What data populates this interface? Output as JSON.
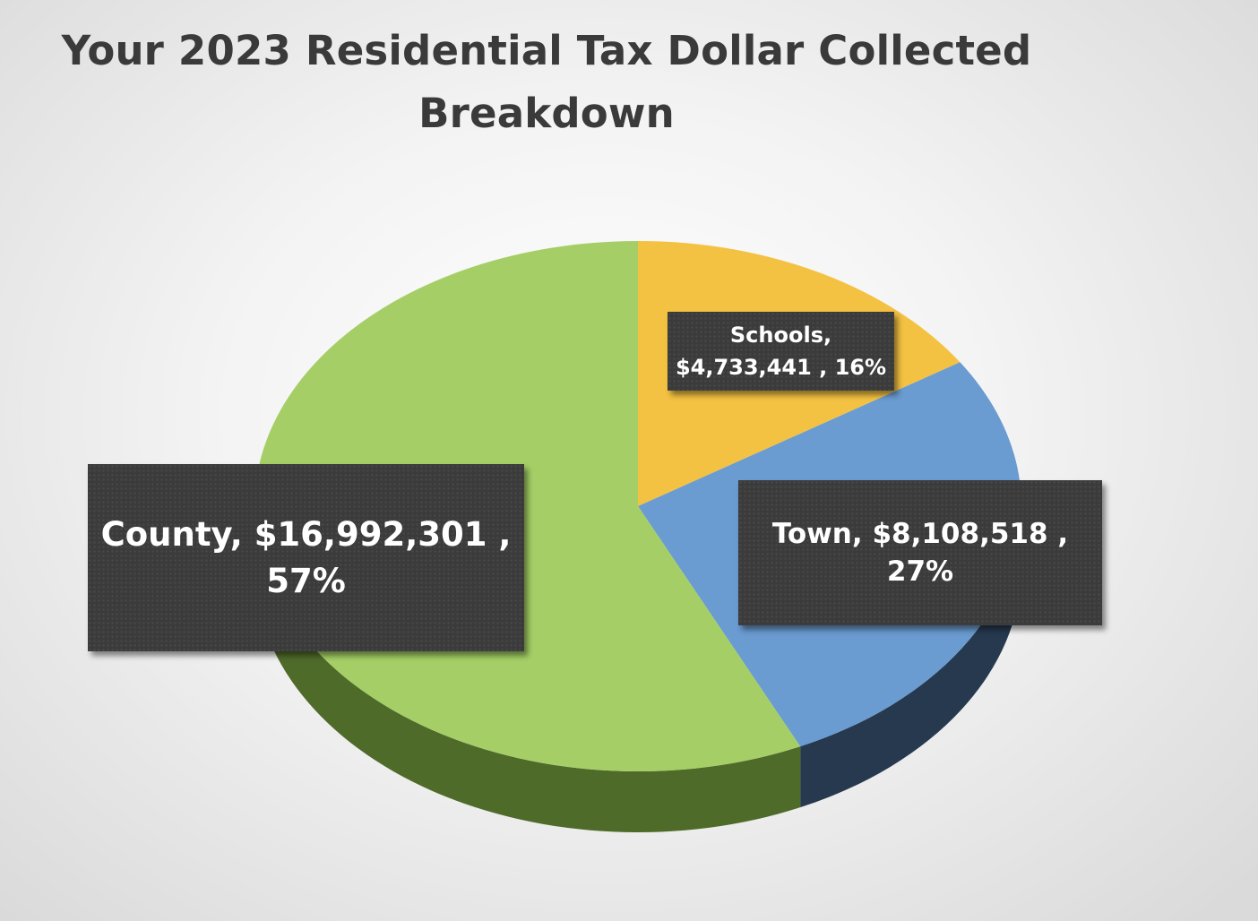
{
  "chart_data": {
    "type": "pie",
    "title_lines": [
      "Your 2023 Residential Tax Dollar Collected",
      "Breakdown"
    ],
    "slices": [
      {
        "name": "Schools",
        "value": 4733441,
        "percent": 16,
        "color": "#f4c242",
        "side_color": "#8a6a18",
        "label_line1": "Schools,",
        "label_line2": "$4,733,441 , 16%"
      },
      {
        "name": "Town",
        "value": 8108518,
        "percent": 27,
        "color": "#6a9bd1",
        "side_color": "#26394f",
        "label_line1": "Town,  $8,108,518 , 27%"
      },
      {
        "name": "County",
        "value": 16992301,
        "percent": 57,
        "color": "#a5cf66",
        "side_color": "#4f6b2a",
        "label_line1": "County,  $16,992,301 ,",
        "label_line2": "57%"
      }
    ],
    "legend": "none",
    "data_labels": "callout-boxes"
  }
}
